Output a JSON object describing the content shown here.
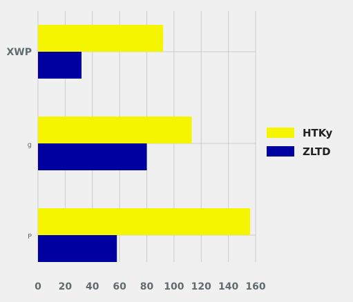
{
  "chart_data": {
    "type": "bar",
    "orientation": "horizontal",
    "categories": [
      "XWP",
      "g",
      "P"
    ],
    "series": [
      {
        "name": "HTKy",
        "values": [
          92,
          113,
          156
        ],
        "color": "#f5f500"
      },
      {
        "name": "ZLTD",
        "values": [
          32,
          80,
          58
        ],
        "color": "#0000a0"
      }
    ],
    "xlim": [
      0,
      160
    ],
    "x_ticks": [
      0,
      20,
      40,
      60,
      80,
      100,
      120,
      140,
      160
    ],
    "x_tick_labels": [
      "0",
      "20",
      "40",
      "60",
      "80",
      "100",
      "120",
      "140",
      "160"
    ],
    "title": "",
    "xlabel": "",
    "ylabel": "",
    "grid": true,
    "legend_position": "right",
    "colors": {
      "background": "#f0f0f0",
      "grid": "#cbcbcb",
      "tick_text": "#5f6b6d",
      "legend_text": "#222222"
    }
  }
}
